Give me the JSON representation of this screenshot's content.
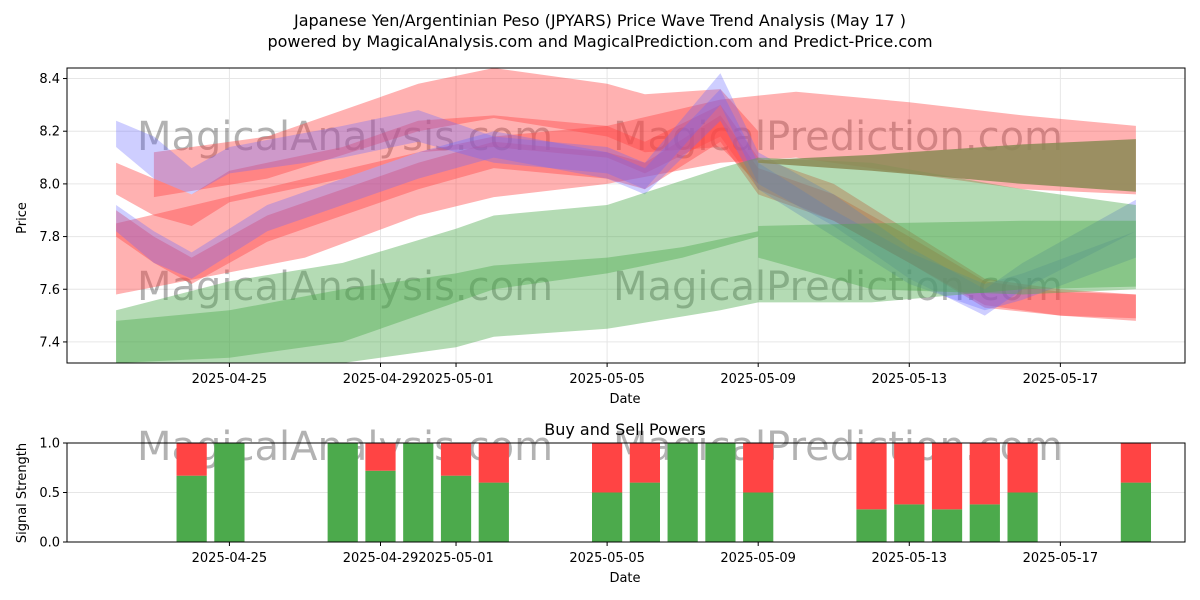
{
  "title_line1": "Japanese Yen/Argentinian Peso (JPYARS) Price Wave Trend Analysis (May 17 )",
  "title_line2": "powered by MagicalAnalysis.com and MagicalPrediction.com and Predict-Price.com",
  "watermarks": [
    "MagicalAnalysis.com",
    "MagicalPrediction.com"
  ],
  "colors": {
    "red": "#ff4444",
    "green": "#4caa4c",
    "blue": "#6666ff",
    "olive": "#8a8a55"
  },
  "chart_data": [
    {
      "type": "area",
      "title": "",
      "xlabel": "Date",
      "ylabel": "Price",
      "xlim": [
        "2025-04-21",
        "2025-05-20"
      ],
      "ylim": [
        7.32,
        8.44
      ],
      "x_ticks": [
        "2025-04-25",
        "2025-04-29",
        "2025-05-01",
        "2025-05-05",
        "2025-05-09",
        "2025-05-13",
        "2025-05-17"
      ],
      "y_ticks": [
        7.4,
        7.6,
        7.8,
        8.0,
        8.2,
        8.4
      ],
      "grid": true,
      "series": [
        {
          "name": "red-lower-wide",
          "color": "red",
          "x": [
            "2025-04-22",
            "2025-04-27",
            "2025-04-30",
            "2025-05-02",
            "2025-05-05",
            "2025-05-08",
            "2025-05-10",
            "2025-05-13",
            "2025-05-16",
            "2025-05-19"
          ],
          "upper": [
            7.85,
            8.02,
            8.12,
            8.18,
            8.22,
            8.32,
            8.35,
            8.31,
            8.26,
            8.22
          ],
          "lower": [
            7.58,
            7.72,
            7.88,
            7.95,
            8.0,
            8.08,
            8.1,
            8.04,
            7.98,
            7.96
          ]
        },
        {
          "name": "red-upper-light",
          "color": "red",
          "x": [
            "2025-04-23",
            "2025-04-26",
            "2025-04-30",
            "2025-05-02",
            "2025-05-05",
            "2025-05-06",
            "2025-05-08",
            "2025-05-09"
          ],
          "upper": [
            8.12,
            8.18,
            8.38,
            8.44,
            8.38,
            8.34,
            8.36,
            8.2
          ],
          "lower": [
            7.95,
            8.02,
            8.2,
            8.25,
            8.18,
            8.12,
            8.14,
            8.0
          ]
        },
        {
          "name": "red-path-a",
          "color": "red",
          "x": [
            "2025-04-22",
            "2025-04-23",
            "2025-04-24",
            "2025-04-25",
            "2025-04-28",
            "2025-04-30",
            "2025-05-02",
            "2025-05-05",
            "2025-05-06",
            "2025-05-08",
            "2025-05-09",
            "2025-05-11",
            "2025-05-13",
            "2025-05-15",
            "2025-05-17",
            "2025-05-19"
          ],
          "upper": [
            8.08,
            8.02,
            7.96,
            8.05,
            8.14,
            8.24,
            8.26,
            8.22,
            8.16,
            8.3,
            8.1,
            8.0,
            7.82,
            7.64,
            7.6,
            7.58
          ],
          "lower": [
            7.96,
            7.88,
            7.84,
            7.93,
            8.02,
            8.12,
            8.14,
            8.1,
            8.04,
            8.18,
            7.98,
            7.86,
            7.7,
            7.54,
            7.5,
            7.48
          ]
        },
        {
          "name": "red-path-b",
          "color": "red",
          "x": [
            "2025-04-22",
            "2025-04-23",
            "2025-04-24",
            "2025-04-26",
            "2025-04-28",
            "2025-04-30",
            "2025-05-02",
            "2025-05-05",
            "2025-05-06",
            "2025-05-08",
            "2025-05-09",
            "2025-05-11",
            "2025-05-13",
            "2025-05-15",
            "2025-05-17",
            "2025-05-19"
          ],
          "upper": [
            7.9,
            7.8,
            7.72,
            7.88,
            7.98,
            8.08,
            8.16,
            8.12,
            8.08,
            8.26,
            8.06,
            7.96,
            7.8,
            7.63,
            7.59,
            7.58
          ],
          "lower": [
            7.8,
            7.7,
            7.62,
            7.78,
            7.88,
            7.98,
            8.06,
            8.02,
            7.98,
            8.16,
            7.96,
            7.86,
            7.7,
            7.53,
            7.5,
            7.49
          ]
        },
        {
          "name": "blue-path-a",
          "color": "blue",
          "x": [
            "2025-04-22",
            "2025-04-23",
            "2025-04-24",
            "2025-04-25",
            "2025-04-28",
            "2025-04-30",
            "2025-05-02",
            "2025-05-05",
            "2025-05-06",
            "2025-05-08",
            "2025-05-09",
            "2025-05-11",
            "2025-05-13",
            "2025-05-15",
            "2025-05-16",
            "2025-05-19"
          ],
          "upper": [
            8.24,
            8.18,
            8.06,
            8.14,
            8.22,
            8.28,
            8.18,
            8.14,
            8.08,
            8.42,
            8.12,
            7.96,
            7.76,
            7.6,
            7.7,
            7.94
          ],
          "lower": [
            8.14,
            8.02,
            7.96,
            8.04,
            8.1,
            8.16,
            8.08,
            8.04,
            7.98,
            8.3,
            8.0,
            7.84,
            7.64,
            7.5,
            7.6,
            7.82
          ]
        },
        {
          "name": "blue-path-b",
          "color": "blue",
          "x": [
            "2025-04-22",
            "2025-04-23",
            "2025-04-24",
            "2025-04-26",
            "2025-04-28",
            "2025-04-30",
            "2025-05-02",
            "2025-05-05",
            "2025-05-06",
            "2025-05-08",
            "2025-05-09",
            "2025-05-11",
            "2025-05-13",
            "2025-05-15",
            "2025-05-16",
            "2025-05-19"
          ],
          "upper": [
            7.92,
            7.82,
            7.74,
            7.92,
            8.02,
            8.12,
            8.2,
            8.12,
            8.06,
            8.36,
            8.08,
            7.9,
            7.74,
            7.62,
            7.66,
            7.82
          ],
          "lower": [
            7.82,
            7.7,
            7.64,
            7.82,
            7.92,
            8.02,
            8.1,
            8.02,
            7.96,
            8.24,
            7.98,
            7.8,
            7.62,
            7.52,
            7.56,
            7.72
          ]
        },
        {
          "name": "green-outer",
          "color": "green",
          "x": [
            "2025-04-22",
            "2025-04-25",
            "2025-04-28",
            "2025-05-01",
            "2025-05-02",
            "2025-05-05",
            "2025-05-08",
            "2025-05-09",
            "2025-05-12",
            "2025-05-16",
            "2025-05-19"
          ],
          "upper": [
            7.52,
            7.63,
            7.7,
            7.83,
            7.88,
            7.92,
            8.06,
            8.1,
            8.08,
            7.98,
            7.92
          ],
          "lower": [
            7.32,
            7.32,
            7.32,
            7.38,
            7.42,
            7.45,
            7.52,
            7.55,
            7.55,
            7.6,
            7.61
          ]
        },
        {
          "name": "green-inner",
          "color": "green",
          "x": [
            "2025-04-22",
            "2025-04-25",
            "2025-04-28",
            "2025-05-01",
            "2025-05-02",
            "2025-05-05",
            "2025-05-07",
            "2025-05-09"
          ],
          "upper": [
            7.48,
            7.52,
            7.6,
            7.66,
            7.69,
            7.72,
            7.76,
            7.82
          ],
          "lower": [
            7.32,
            7.34,
            7.4,
            7.55,
            7.6,
            7.66,
            7.72,
            7.8
          ]
        },
        {
          "name": "green-tail",
          "color": "green",
          "x": [
            "2025-05-09",
            "2025-05-12",
            "2025-05-16",
            "2025-05-19"
          ],
          "upper": [
            7.84,
            7.85,
            7.86,
            7.86
          ],
          "lower": [
            7.72,
            7.6,
            7.58,
            7.6
          ]
        },
        {
          "name": "olive-overlap",
          "color": "olive",
          "x": [
            "2025-05-09",
            "2025-05-12",
            "2025-05-16",
            "2025-05-19"
          ],
          "upper": [
            8.09,
            8.11,
            8.15,
            8.17
          ],
          "lower": [
            8.08,
            8.05,
            8.0,
            7.97
          ]
        }
      ]
    },
    {
      "type": "bar",
      "title": "Buy and Sell Powers",
      "xlabel": "Date",
      "ylabel": "Signal Strength",
      "ylim": [
        0.0,
        1.0
      ],
      "y_ticks": [
        0.0,
        0.5,
        1.0
      ],
      "x_ticks": [
        "2025-04-25",
        "2025-04-29",
        "2025-05-01",
        "2025-05-05",
        "2025-05-09",
        "2025-05-13",
        "2025-05-17"
      ],
      "grid": true,
      "categories": [
        "2025-04-24",
        "2025-04-25",
        "2025-04-28",
        "2025-04-29",
        "2025-04-30",
        "2025-05-01",
        "2025-05-02",
        "2025-05-05",
        "2025-05-06",
        "2025-05-07",
        "2025-05-08",
        "2025-05-09",
        "2025-05-12",
        "2025-05-13",
        "2025-05-14",
        "2025-05-15",
        "2025-05-16",
        "2025-05-19"
      ],
      "series": [
        {
          "name": "Buy",
          "color": "green",
          "values": [
            0.67,
            1.0,
            1.0,
            0.72,
            1.0,
            0.67,
            0.6,
            0.5,
            0.6,
            1.0,
            1.0,
            0.5,
            0.33,
            0.38,
            0.33,
            0.38,
            0.5,
            0.6
          ]
        },
        {
          "name": "Sell",
          "color": "red",
          "values": [
            0.33,
            0.0,
            0.0,
            0.28,
            0.0,
            0.33,
            0.4,
            0.5,
            0.4,
            0.0,
            0.0,
            0.5,
            0.67,
            0.62,
            0.67,
            0.62,
            0.5,
            0.4
          ]
        }
      ]
    }
  ]
}
